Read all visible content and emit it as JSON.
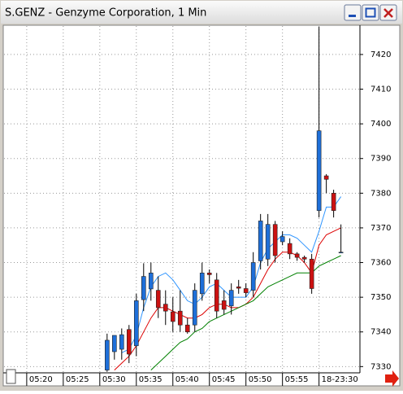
{
  "window": {
    "title": "S.GENZ - Genzyme Corporation, 1 Min"
  },
  "chart_data": {
    "type": "candlestick",
    "x": [
      11,
      12,
      13,
      14,
      15,
      16,
      17,
      18,
      19,
      20,
      21,
      22,
      23,
      24,
      25,
      26,
      27,
      28,
      29,
      30,
      31,
      32,
      33,
      34,
      35,
      36,
      37,
      38,
      39,
      40,
      41,
      42,
      43
    ],
    "open": [
      7329,
      7334.3,
      7335,
      7340.7,
      7336,
      7349.3,
      7352.4,
      7352,
      7348,
      7345.8,
      7346,
      7342,
      7342,
      7351,
      7357,
      7355,
      7349,
      7347.5,
      7353,
      7352.5,
      7352,
      7360.5,
      7361,
      7371,
      7366,
      7365.5,
      7362.5,
      7361.5,
      7361,
      7375,
      7385,
      7380,
      7363
    ],
    "high": [
      7339.5,
      7338,
      7341,
      7342,
      7351,
      7359.8,
      7360,
      7356,
      7352,
      7350,
      7352,
      7344,
      7354,
      7360,
      7358,
      7357,
      7352,
      7354,
      7355,
      7354,
      7363,
      7374,
      7374,
      7372,
      7369,
      7367,
      7363,
      7362,
      7362.5,
      7428,
      7385.5,
      7381,
      7371
    ],
    "low": [
      7328.5,
      7332,
      7332,
      7331,
      7333,
      7346,
      7349,
      7344,
      7342,
      7340,
      7340,
      7339.5,
      7340,
      7349,
      7354,
      7344,
      7345,
      7345,
      7351,
      7350,
      7350,
      7358,
      7359,
      7360,
      7365,
      7361,
      7360.5,
      7360,
      7351,
      7373,
      7380,
      7373,
      7363
    ],
    "close": [
      7337.6,
      7339,
      7339.2,
      7333.6,
      7349,
      7356,
      7357,
      7347,
      7346,
      7343,
      7342,
      7340,
      7352,
      7357,
      7356.5,
      7346,
      7346.5,
      7352,
      7352.6,
      7351.3,
      7360,
      7372,
      7371,
      7362,
      7367.5,
      7362.5,
      7361.5,
      7361,
      7352.5,
      7398,
      7384,
      7375,
      7363
    ],
    "up_color": "#1e6fd9",
    "down_color": "#cc1111",
    "series": [
      {
        "color": "#2f95ff",
        "values": [
          null,
          null,
          7334,
          7335,
          7339,
          7347,
          7353,
          7356,
          7357,
          7355,
          7352,
          7349,
          7348,
          7350,
          7353,
          7354,
          7352,
          7350,
          7350,
          7350,
          7353,
          7360,
          7364,
          7366,
          7368,
          7368,
          7367,
          7365,
          7363,
          7369,
          7376,
          7376,
          7379
        ]
      },
      {
        "color": "#dd0000",
        "values": [
          null,
          7329,
          7331,
          7333,
          7336,
          7340,
          7344,
          7347,
          7347,
          7346,
          7345,
          7344,
          7344,
          7345,
          7347,
          7348,
          7348,
          7347,
          7347,
          7348,
          7350,
          7354,
          7358,
          7361,
          7363,
          7363,
          7362,
          7360,
          7357,
          7365,
          7368,
          7369,
          7370
        ]
      },
      {
        "color": "#008000",
        "values": [
          null,
          null,
          null,
          null,
          null,
          null,
          7329,
          7331,
          7333,
          7335,
          7337,
          7338,
          7340,
          7341,
          7343,
          7344,
          7345,
          7346,
          7347,
          7348,
          7349,
          7351,
          7353,
          7354,
          7355,
          7356,
          7357,
          7357,
          7357,
          7359,
          7360,
          7361,
          7362
        ]
      }
    ],
    "xlim": [
      -3.1,
      45.6
    ],
    "ylim": [
      7328.2,
      7428.2
    ],
    "yticks": [
      7330,
      7340,
      7350,
      7360,
      7370,
      7380,
      7390,
      7400,
      7410,
      7420
    ],
    "xticks": [
      {
        "value": 0,
        "label": "05:20"
      },
      {
        "value": 5,
        "label": "05:25"
      },
      {
        "value": 10,
        "label": "05:30"
      },
      {
        "value": 15,
        "label": "05:35"
      },
      {
        "value": 20,
        "label": "05:40"
      },
      {
        "value": 25,
        "label": "05:45"
      },
      {
        "value": 30,
        "label": "05:50"
      },
      {
        "value": 35,
        "label": "05:55"
      },
      {
        "value": 40,
        "label": "18-23:30"
      }
    ],
    "grid": true
  }
}
